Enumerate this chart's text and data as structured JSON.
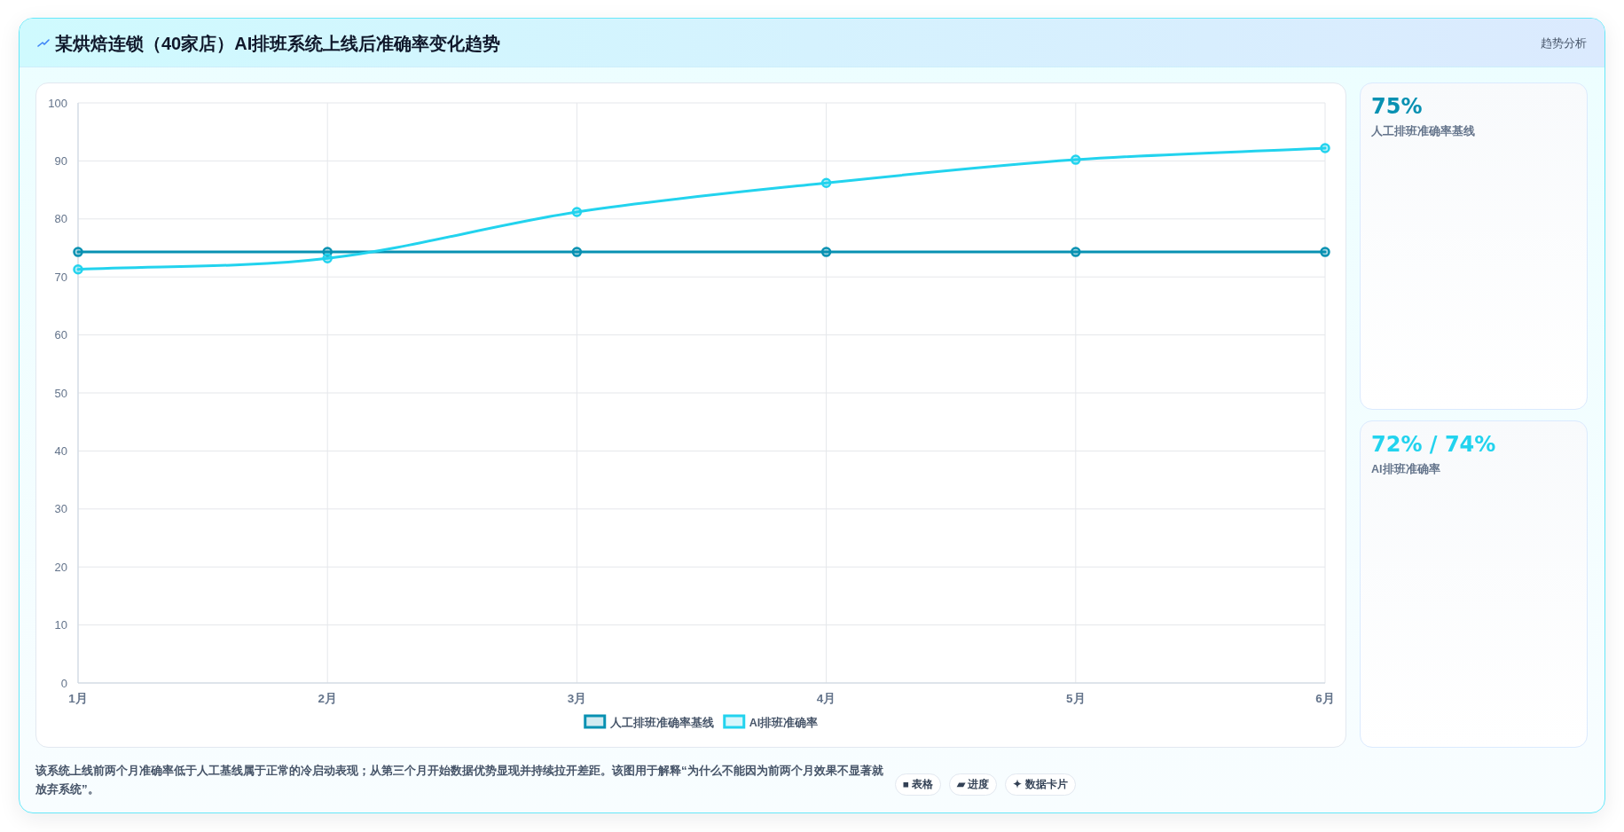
{
  "chart_data": [
    {
      "type": "line",
      "title": "某烘焙连锁（40家店）AI排班系统上线后准确率变化趋势",
      "categories": [
        "1月",
        "2月",
        "3月",
        "4月",
        "5月",
        "6月"
      ],
      "series": [
        {
          "name": "人工排班准确率基线",
          "color": "#0891b2",
          "values": [
            74.3,
            74.3,
            74.3,
            74.3,
            74.3,
            74.3
          ]
        },
        {
          "name": "AI排班准确率",
          "color": "#22d3ee",
          "values": [
            71.3,
            73.2,
            81.2,
            86.2,
            90.2,
            92.2
          ]
        }
      ],
      "ylim": [
        0,
        100
      ],
      "yticks": [
        0,
        10,
        20,
        30,
        40,
        50,
        60,
        70,
        80,
        90,
        100
      ],
      "grid": true,
      "legend": "bottom",
      "marker": "circle",
      "line_style": "solid",
      "annotations": [
        "趋势分析",
        "该系统上线前两个月准确率低于人工基线属于正常的冷启动表现；从第三个月开始数据优势显现并持续拉开差距。该图用于解释“为什么不能因为前两个月效果不显著就放弃系统”。",
        "■ 表格",
        "▰ 进度",
        "✦ 数据卡片"
      ]
    },
    {
      "type": "other",
      "annotations": [
        "75%",
        "人工排班准确率基线",
        "72% / 74%",
        "AI排班准确率"
      ]
    }
  ]
}
